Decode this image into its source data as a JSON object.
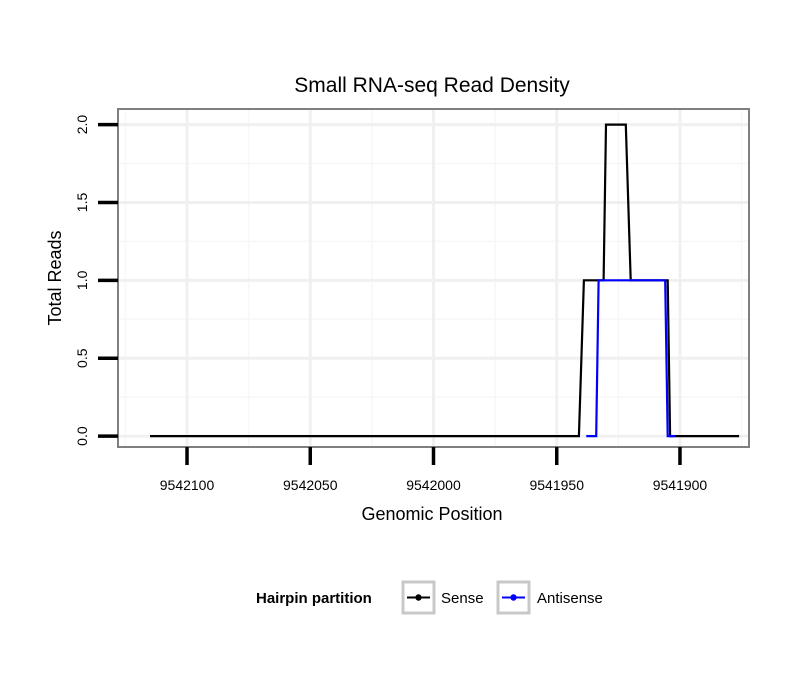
{
  "chart_data": {
    "type": "line",
    "title": "Small RNA-seq Read Density",
    "xlabel": "Genomic Position",
    "ylabel": "Total Reads",
    "x_reversed": true,
    "xlim": [
      9542128,
      9541872
    ],
    "ylim": [
      -0.07,
      2.1
    ],
    "x_ticks": [
      9542100,
      9542050,
      9542000,
      9541950,
      9541900
    ],
    "x_tick_labels": [
      "9542100",
      "9542050",
      "9542000",
      "9541950",
      "9541900"
    ],
    "y_ticks": [
      0,
      0.5,
      1,
      1.5,
      2
    ],
    "y_tick_labels": [
      "0.0",
      "0.5",
      "1.0",
      "1.5",
      "2.0"
    ],
    "grid": true,
    "legend": {
      "title": "Hairpin partition",
      "position": "bottom",
      "entries": [
        "Sense",
        "Antisense"
      ]
    },
    "series": [
      {
        "name": "Sense",
        "color": "#000000",
        "x": [
          9542115,
          9541941,
          9541939,
          9541931,
          9541930,
          9541922,
          9541920,
          9541905,
          9541904,
          9541876
        ],
        "y": [
          0,
          0,
          1,
          1,
          2,
          2,
          1,
          1,
          0,
          0
        ]
      },
      {
        "name": "Antisense",
        "color": "#0000ff",
        "x": [
          9541938,
          9541934,
          9541933,
          9541906,
          9541905,
          9541902
        ],
        "y": [
          0,
          0,
          1,
          1,
          0,
          0
        ]
      }
    ]
  }
}
